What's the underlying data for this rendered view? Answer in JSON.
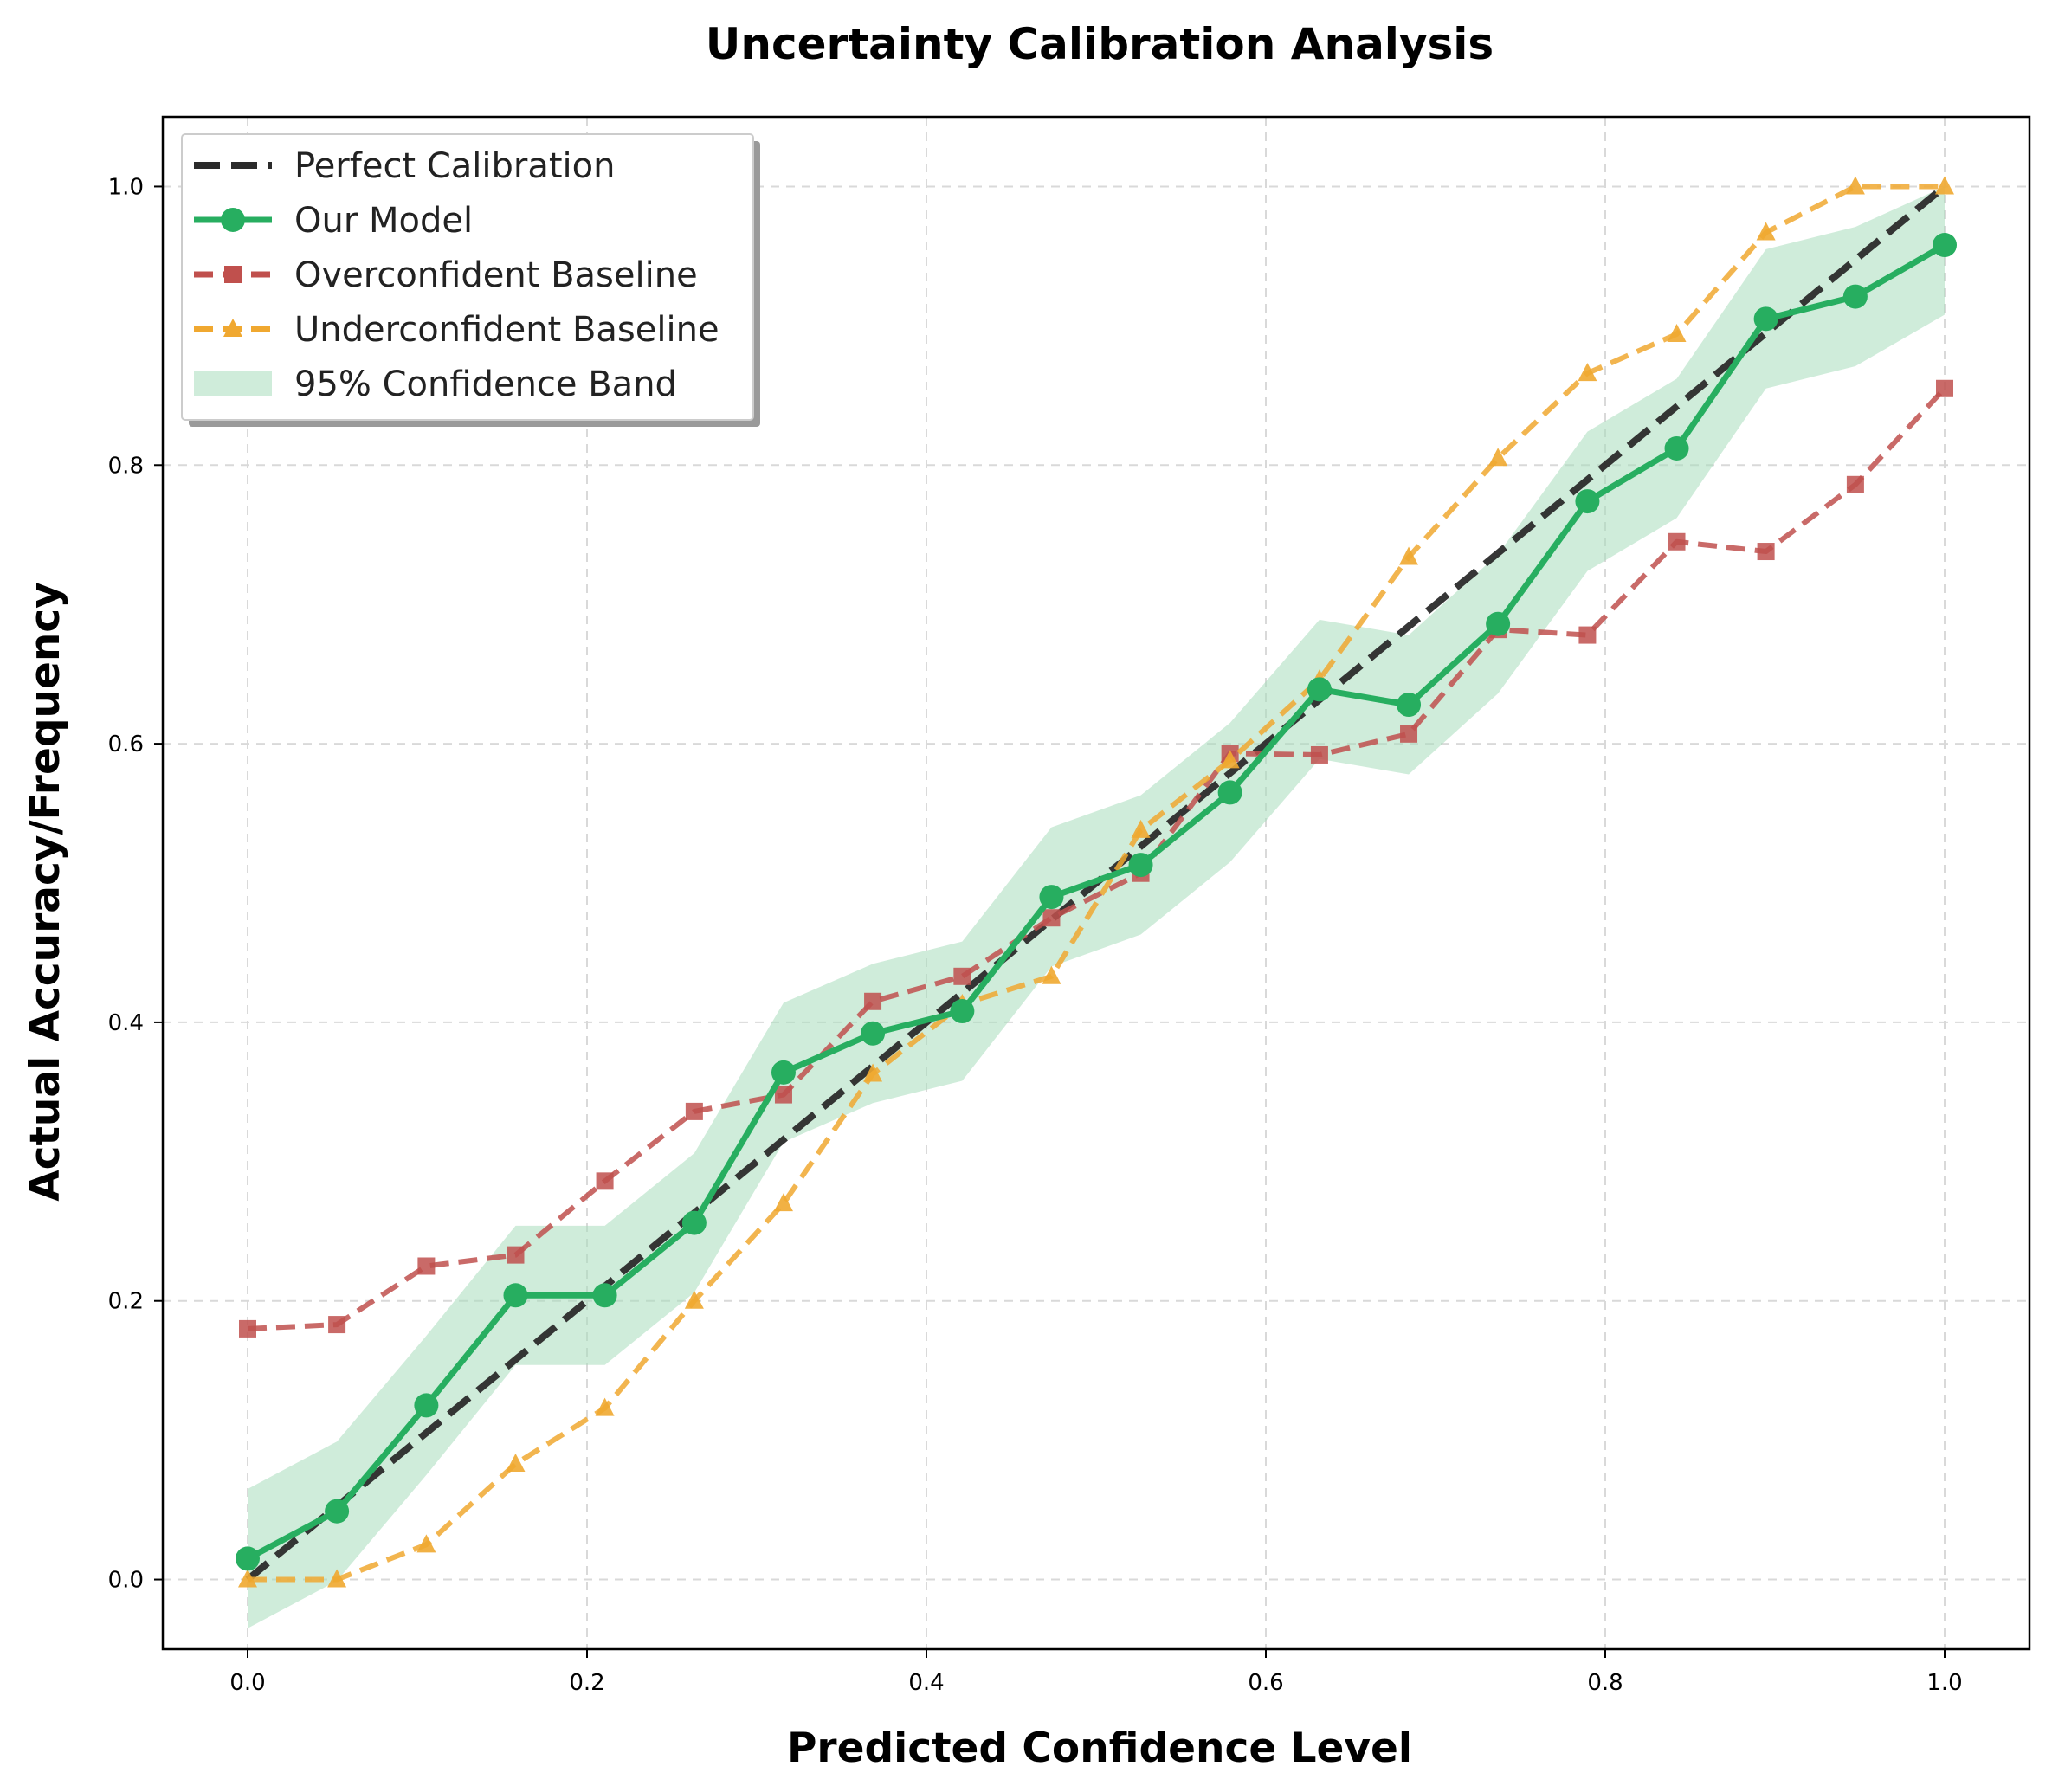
{
  "chart_data": {
    "type": "line",
    "title": "Uncertainty Calibration Analysis",
    "xlabel": "Predicted Confidence Level",
    "ylabel": "Actual Accuracy/Frequency",
    "xlim": [
      -0.05,
      1.05
    ],
    "ylim": [
      -0.05,
      1.05
    ],
    "xticks": [
      0.0,
      0.2,
      0.4,
      0.6,
      0.8,
      1.0
    ],
    "yticks": [
      0.0,
      0.2,
      0.4,
      0.6,
      0.8,
      1.0
    ],
    "tick_labels": [
      "0.0",
      "0.2",
      "0.4",
      "0.6",
      "0.8",
      "1.0"
    ],
    "grid": true,
    "legend_position": "top-left",
    "x": [
      0.0,
      0.0526,
      0.1053,
      0.1579,
      0.2105,
      0.2632,
      0.3158,
      0.3684,
      0.4211,
      0.4737,
      0.5263,
      0.5789,
      0.6316,
      0.6842,
      0.7368,
      0.7895,
      0.8421,
      0.8947,
      0.9474,
      1.0
    ],
    "series": [
      {
        "name": "Perfect Calibration",
        "style": "dashed",
        "marker": "none",
        "color": "#2b2b2b",
        "values": [
          0.0,
          0.0526,
          0.1053,
          0.1579,
          0.2105,
          0.2632,
          0.3158,
          0.3684,
          0.4211,
          0.4737,
          0.5263,
          0.5789,
          0.6316,
          0.6842,
          0.7368,
          0.7895,
          0.8421,
          0.8947,
          0.9474,
          1.0
        ]
      },
      {
        "name": "Our Model",
        "style": "solid",
        "marker": "circle",
        "color": "#27ae60",
        "values": [
          0.015,
          0.049,
          0.125,
          0.204,
          0.204,
          0.256,
          0.364,
          0.392,
          0.408,
          0.49,
          0.513,
          0.565,
          0.639,
          0.628,
          0.686,
          0.774,
          0.812,
          0.905,
          0.921,
          0.958
        ]
      },
      {
        "name": "Overconfident Baseline",
        "style": "dashed",
        "marker": "square",
        "color": "#c0504d",
        "values": [
          0.18,
          0.183,
          0.225,
          0.233,
          0.286,
          0.336,
          0.348,
          0.415,
          0.433,
          0.475,
          0.507,
          0.593,
          0.592,
          0.607,
          0.682,
          0.678,
          0.745,
          0.738,
          0.786,
          0.855
        ]
      },
      {
        "name": "Underconfident Baseline",
        "style": "dashed",
        "marker": "triangle",
        "color": "#f0a830",
        "values": [
          0.0,
          0.0,
          0.025,
          0.083,
          0.123,
          0.2,
          0.27,
          0.363,
          0.413,
          0.433,
          0.538,
          0.588,
          0.646,
          0.734,
          0.805,
          0.866,
          0.894,
          0.967,
          1.0,
          1.0
        ]
      }
    ],
    "confidence_band": {
      "name": "95% Confidence Band",
      "color": "#a8dcbc",
      "lower": [
        -0.035,
        -0.001,
        0.075,
        0.154,
        0.154,
        0.206,
        0.314,
        0.342,
        0.358,
        0.44,
        0.463,
        0.515,
        0.589,
        0.578,
        0.636,
        0.724,
        0.762,
        0.855,
        0.871,
        0.908
      ],
      "upper": [
        0.065,
        0.099,
        0.175,
        0.254,
        0.254,
        0.306,
        0.414,
        0.442,
        0.458,
        0.54,
        0.563,
        0.615,
        0.689,
        0.678,
        0.736,
        0.824,
        0.862,
        0.955,
        0.971,
        1.0
      ]
    }
  }
}
